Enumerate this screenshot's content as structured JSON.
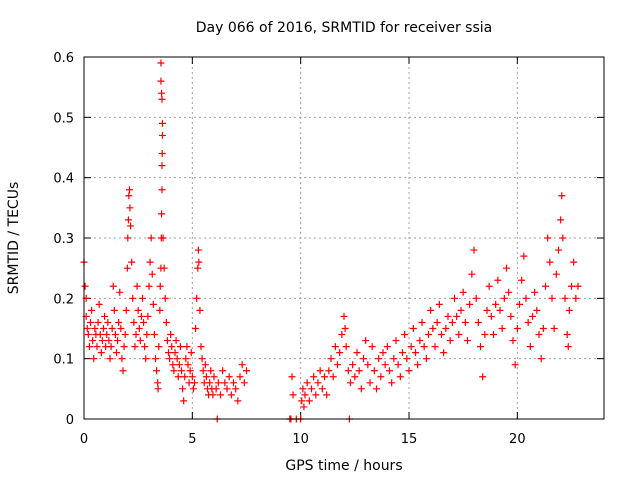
{
  "chart_data": {
    "type": "scatter",
    "title": "Day 066 of 2016, SRMTID for receiver ssia",
    "xlabel": "GPS time / hours",
    "ylabel": "SRMTID / TECUs",
    "xlim": [
      0,
      24
    ],
    "ylim": [
      0,
      0.6
    ],
    "xticks": [
      0,
      5,
      10,
      15,
      20
    ],
    "xtick_labels": [
      "0",
      "5",
      "10",
      "15",
      "20"
    ],
    "yticks": [
      0,
      0.1,
      0.2,
      0.3,
      0.4,
      0.5,
      0.6
    ],
    "ytick_labels": [
      "0",
      "0.1",
      "0.2",
      "0.3",
      "0.4",
      "0.5",
      "0.6"
    ],
    "grid": true,
    "marker": "+",
    "color": "#ff0000",
    "series": [
      {
        "name": "SRMTID",
        "points": [
          [
            0.0,
            0.26
          ],
          [
            0.05,
            0.22
          ],
          [
            0.1,
            0.2
          ],
          [
            0.1,
            0.17
          ],
          [
            0.15,
            0.15
          ],
          [
            0.2,
            0.14
          ],
          [
            0.25,
            0.12
          ],
          [
            0.3,
            0.16
          ],
          [
            0.35,
            0.18
          ],
          [
            0.4,
            0.13
          ],
          [
            0.45,
            0.1
          ],
          [
            0.5,
            0.15
          ],
          [
            0.55,
            0.14
          ],
          [
            0.6,
            0.12
          ],
          [
            0.65,
            0.16
          ],
          [
            0.7,
            0.19
          ],
          [
            0.75,
            0.14
          ],
          [
            0.8,
            0.11
          ],
          [
            0.85,
            0.13
          ],
          [
            0.9,
            0.15
          ],
          [
            0.95,
            0.17
          ],
          [
            1.0,
            0.12
          ],
          [
            1.05,
            0.14
          ],
          [
            1.1,
            0.16
          ],
          [
            1.15,
            0.13
          ],
          [
            1.2,
            0.1
          ],
          [
            1.25,
            0.12
          ],
          [
            1.3,
            0.15
          ],
          [
            1.35,
            0.22
          ],
          [
            1.4,
            0.18
          ],
          [
            1.45,
            0.14
          ],
          [
            1.5,
            0.11
          ],
          [
            1.55,
            0.13
          ],
          [
            1.6,
            0.16
          ],
          [
            1.65,
            0.21
          ],
          [
            1.7,
            0.15
          ],
          [
            1.75,
            0.1
          ],
          [
            1.8,
            0.08
          ],
          [
            1.85,
            0.12
          ],
          [
            1.9,
            0.14
          ],
          [
            1.95,
            0.18
          ],
          [
            2.0,
            0.25
          ],
          [
            2.02,
            0.3
          ],
          [
            2.05,
            0.33
          ],
          [
            2.07,
            0.37
          ],
          [
            2.1,
            0.38
          ],
          [
            2.12,
            0.35
          ],
          [
            2.15,
            0.32
          ],
          [
            2.2,
            0.26
          ],
          [
            2.25,
            0.2
          ],
          [
            2.3,
            0.16
          ],
          [
            2.35,
            0.12
          ],
          [
            2.4,
            0.14
          ],
          [
            2.45,
            0.22
          ],
          [
            2.5,
            0.18
          ],
          [
            2.55,
            0.15
          ],
          [
            2.6,
            0.13
          ],
          [
            2.65,
            0.17
          ],
          [
            2.7,
            0.2
          ],
          [
            2.75,
            0.16
          ],
          [
            2.8,
            0.12
          ],
          [
            2.85,
            0.1
          ],
          [
            2.9,
            0.14
          ],
          [
            2.95,
            0.17
          ],
          [
            3.0,
            0.22
          ],
          [
            3.05,
            0.26
          ],
          [
            3.1,
            0.3
          ],
          [
            3.15,
            0.24
          ],
          [
            3.2,
            0.19
          ],
          [
            3.25,
            0.14
          ],
          [
            3.3,
            0.1
          ],
          [
            3.35,
            0.08
          ],
          [
            3.4,
            0.06
          ],
          [
            3.42,
            0.05
          ],
          [
            3.45,
            0.12
          ],
          [
            3.5,
            0.18
          ],
          [
            3.52,
            0.22
          ],
          [
            3.55,
            0.25
          ],
          [
            3.57,
            0.3
          ],
          [
            3.58,
            0.34
          ],
          [
            3.6,
            0.38
          ],
          [
            3.6,
            0.42
          ],
          [
            3.61,
            0.44
          ],
          [
            3.62,
            0.47
          ],
          [
            3.62,
            0.49
          ],
          [
            3.6,
            0.53
          ],
          [
            3.58,
            0.54
          ],
          [
            3.55,
            0.56
          ],
          [
            3.55,
            0.59
          ],
          [
            3.65,
            0.3
          ],
          [
            3.7,
            0.25
          ],
          [
            3.75,
            0.2
          ],
          [
            3.8,
            0.16
          ],
          [
            3.85,
            0.13
          ],
          [
            3.9,
            0.11
          ],
          [
            3.95,
            0.1
          ],
          [
            4.0,
            0.14
          ],
          [
            4.05,
            0.12
          ],
          [
            4.1,
            0.09
          ],
          [
            4.15,
            0.08
          ],
          [
            4.2,
            0.11
          ],
          [
            4.25,
            0.13
          ],
          [
            4.3,
            0.1
          ],
          [
            4.35,
            0.07
          ],
          [
            4.4,
            0.09
          ],
          [
            4.45,
            0.12
          ],
          [
            4.5,
            0.08
          ],
          [
            4.55,
            0.05
          ],
          [
            4.6,
            0.03
          ],
          [
            4.65,
            0.07
          ],
          [
            4.7,
            0.1
          ],
          [
            4.75,
            0.12
          ],
          [
            4.8,
            0.09
          ],
          [
            4.85,
            0.06
          ],
          [
            4.9,
            0.08
          ],
          [
            4.95,
            0.11
          ],
          [
            5.0,
            0.07
          ],
          [
            5.05,
            0.05
          ],
          [
            5.1,
            0.06
          ],
          [
            5.15,
            0.15
          ],
          [
            5.2,
            0.2
          ],
          [
            5.25,
            0.25
          ],
          [
            5.28,
            0.28
          ],
          [
            5.3,
            0.26
          ],
          [
            5.35,
            0.18
          ],
          [
            5.4,
            0.12
          ],
          [
            5.45,
            0.1
          ],
          [
            5.5,
            0.08
          ],
          [
            5.55,
            0.06
          ],
          [
            5.6,
            0.09
          ],
          [
            5.65,
            0.07
          ],
          [
            5.7,
            0.05
          ],
          [
            5.75,
            0.04
          ],
          [
            5.8,
            0.06
          ],
          [
            5.85,
            0.08
          ],
          [
            5.9,
            0.05
          ],
          [
            5.95,
            0.04
          ],
          [
            6.0,
            0.07
          ],
          [
            6.1,
            0.05
          ],
          [
            6.2,
            0.06
          ],
          [
            6.3,
            0.04
          ],
          [
            6.4,
            0.08
          ],
          [
            6.5,
            0.06
          ],
          [
            6.6,
            0.05
          ],
          [
            6.7,
            0.07
          ],
          [
            6.8,
            0.04
          ],
          [
            6.9,
            0.06
          ],
          [
            7.0,
            0.05
          ],
          [
            7.1,
            0.03
          ],
          [
            7.2,
            0.07
          ],
          [
            7.3,
            0.09
          ],
          [
            7.4,
            0.06
          ],
          [
            7.5,
            0.08
          ],
          [
            6.15,
            0.0
          ],
          [
            9.5,
            0.0
          ],
          [
            9.55,
            0.0
          ],
          [
            9.6,
            0.07
          ],
          [
            9.65,
            0.04
          ],
          [
            9.8,
            0.0
          ],
          [
            10.0,
            0.0
          ],
          [
            10.05,
            0.03
          ],
          [
            10.1,
            0.05
          ],
          [
            10.15,
            0.02
          ],
          [
            10.2,
            0.04
          ],
          [
            10.3,
            0.06
          ],
          [
            10.4,
            0.03
          ],
          [
            10.5,
            0.05
          ],
          [
            10.6,
            0.07
          ],
          [
            10.7,
            0.04
          ],
          [
            10.8,
            0.06
          ],
          [
            10.9,
            0.08
          ],
          [
            11.0,
            0.05
          ],
          [
            11.1,
            0.07
          ],
          [
            11.2,
            0.04
          ],
          [
            11.3,
            0.08
          ],
          [
            11.4,
            0.1
          ],
          [
            11.5,
            0.07
          ],
          [
            11.6,
            0.12
          ],
          [
            11.7,
            0.09
          ],
          [
            11.8,
            0.11
          ],
          [
            11.9,
            0.14
          ],
          [
            12.0,
            0.17
          ],
          [
            12.05,
            0.15
          ],
          [
            12.1,
            0.12
          ],
          [
            12.2,
            0.08
          ],
          [
            12.25,
            0.0
          ],
          [
            12.3,
            0.06
          ],
          [
            12.4,
            0.09
          ],
          [
            12.5,
            0.07
          ],
          [
            12.6,
            0.11
          ],
          [
            12.7,
            0.08
          ],
          [
            12.8,
            0.05
          ],
          [
            12.9,
            0.1
          ],
          [
            13.0,
            0.13
          ],
          [
            13.1,
            0.09
          ],
          [
            13.2,
            0.06
          ],
          [
            13.3,
            0.12
          ],
          [
            13.4,
            0.08
          ],
          [
            13.5,
            0.05
          ],
          [
            13.6,
            0.1
          ],
          [
            13.7,
            0.07
          ],
          [
            13.8,
            0.11
          ],
          [
            13.9,
            0.09
          ],
          [
            14.0,
            0.12
          ],
          [
            14.1,
            0.08
          ],
          [
            14.2,
            0.06
          ],
          [
            14.3,
            0.1
          ],
          [
            14.4,
            0.13
          ],
          [
            14.5,
            0.09
          ],
          [
            14.6,
            0.07
          ],
          [
            14.7,
            0.11
          ],
          [
            14.8,
            0.14
          ],
          [
            14.9,
            0.1
          ],
          [
            15.0,
            0.08
          ],
          [
            15.1,
            0.12
          ],
          [
            15.2,
            0.15
          ],
          [
            15.3,
            0.11
          ],
          [
            15.4,
            0.09
          ],
          [
            15.5,
            0.13
          ],
          [
            15.6,
            0.16
          ],
          [
            15.7,
            0.12
          ],
          [
            15.8,
            0.1
          ],
          [
            15.9,
            0.14
          ],
          [
            16.0,
            0.18
          ],
          [
            16.1,
            0.15
          ],
          [
            16.2,
            0.12
          ],
          [
            16.3,
            0.16
          ],
          [
            16.4,
            0.19
          ],
          [
            16.5,
            0.14
          ],
          [
            16.6,
            0.11
          ],
          [
            16.7,
            0.15
          ],
          [
            16.8,
            0.17
          ],
          [
            16.9,
            0.13
          ],
          [
            17.0,
            0.16
          ],
          [
            17.1,
            0.2
          ],
          [
            17.2,
            0.17
          ],
          [
            17.3,
            0.14
          ],
          [
            17.4,
            0.18
          ],
          [
            17.5,
            0.21
          ],
          [
            17.6,
            0.16
          ],
          [
            17.7,
            0.13
          ],
          [
            17.8,
            0.19
          ],
          [
            17.9,
            0.24
          ],
          [
            18.0,
            0.28
          ],
          [
            18.1,
            0.2
          ],
          [
            18.2,
            0.16
          ],
          [
            18.3,
            0.12
          ],
          [
            18.4,
            0.07
          ],
          [
            18.5,
            0.14
          ],
          [
            18.6,
            0.18
          ],
          [
            18.7,
            0.22
          ],
          [
            18.8,
            0.17
          ],
          [
            18.9,
            0.14
          ],
          [
            19.0,
            0.19
          ],
          [
            19.1,
            0.23
          ],
          [
            19.2,
            0.18
          ],
          [
            19.3,
            0.15
          ],
          [
            19.4,
            0.2
          ],
          [
            19.5,
            0.25
          ],
          [
            19.6,
            0.21
          ],
          [
            19.7,
            0.17
          ],
          [
            19.8,
            0.13
          ],
          [
            19.9,
            0.09
          ],
          [
            20.0,
            0.15
          ],
          [
            20.1,
            0.19
          ],
          [
            20.2,
            0.23
          ],
          [
            20.3,
            0.27
          ],
          [
            20.4,
            0.2
          ],
          [
            20.5,
            0.16
          ],
          [
            20.6,
            0.12
          ],
          [
            20.7,
            0.17
          ],
          [
            20.8,
            0.21
          ],
          [
            20.9,
            0.18
          ],
          [
            21.0,
            0.14
          ],
          [
            21.1,
            0.1
          ],
          [
            21.2,
            0.15
          ],
          [
            21.3,
            0.22
          ],
          [
            21.4,
            0.3
          ],
          [
            21.5,
            0.26
          ],
          [
            21.6,
            0.2
          ],
          [
            21.7,
            0.15
          ],
          [
            21.8,
            0.24
          ],
          [
            21.9,
            0.28
          ],
          [
            22.0,
            0.33
          ],
          [
            22.05,
            0.37
          ],
          [
            22.1,
            0.3
          ],
          [
            22.2,
            0.2
          ],
          [
            22.3,
            0.14
          ],
          [
            22.35,
            0.12
          ],
          [
            22.4,
            0.18
          ],
          [
            22.5,
            0.22
          ],
          [
            22.6,
            0.26
          ],
          [
            22.7,
            0.2
          ],
          [
            22.8,
            0.22
          ]
        ]
      }
    ]
  }
}
